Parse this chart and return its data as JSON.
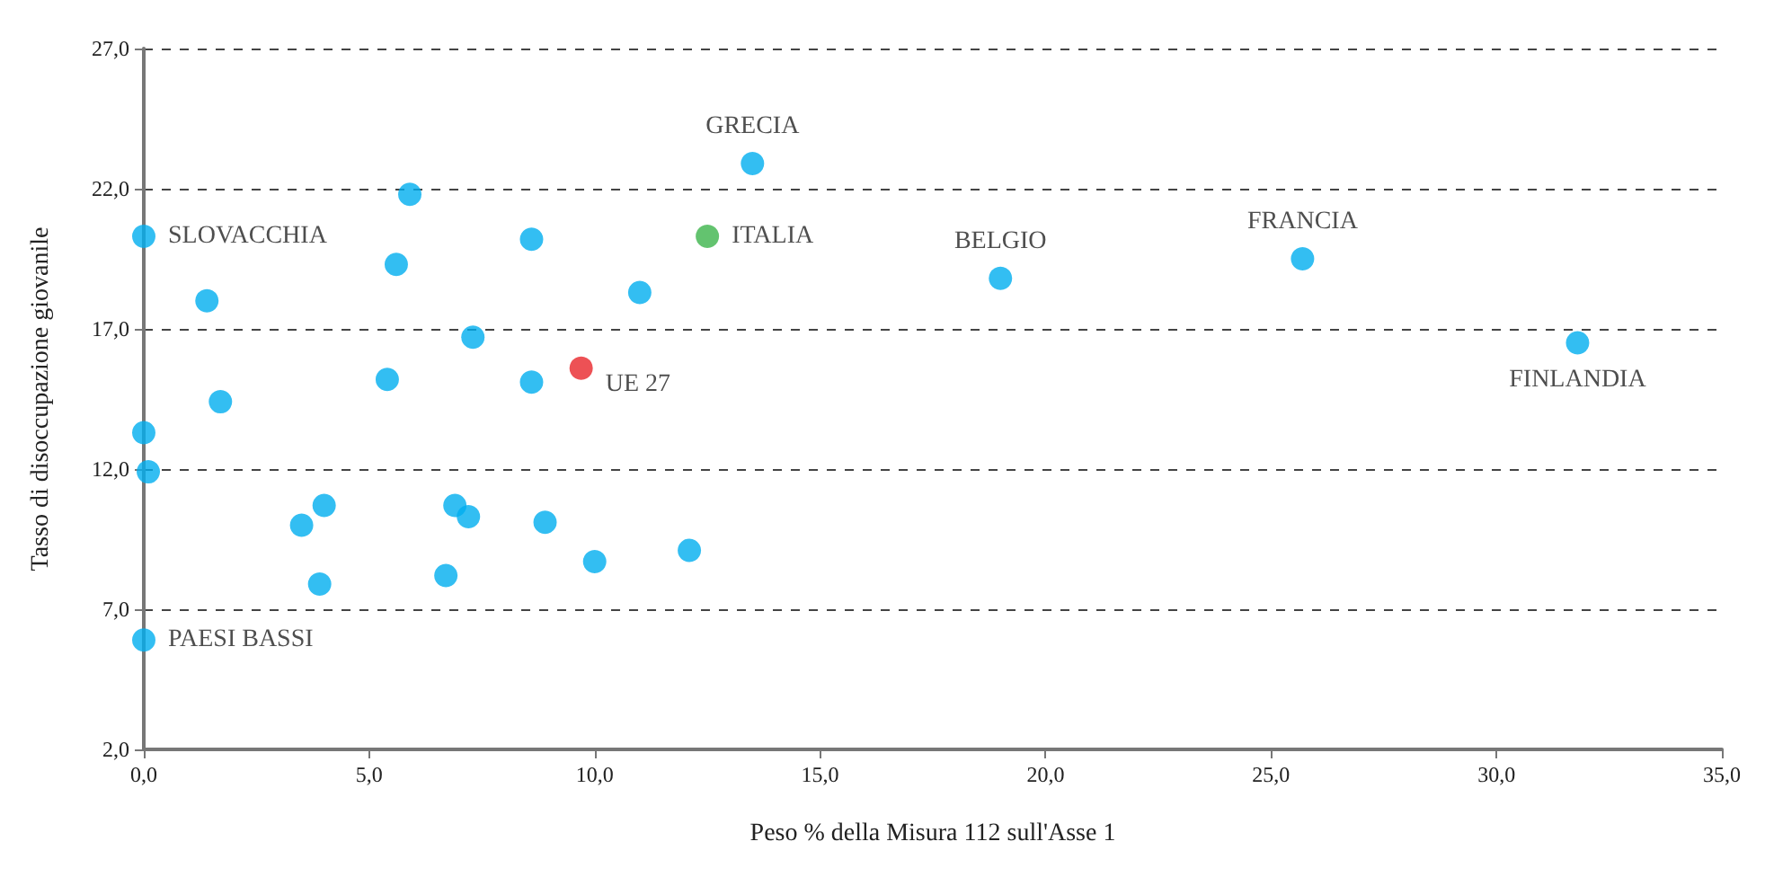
{
  "chart_data": {
    "type": "scatter",
    "xlabel": "Peso % della Misura 112 sull'Asse 1",
    "ylabel": "Tasso di disoccupazione giovanile",
    "xlim": [
      0,
      35
    ],
    "ylim": [
      2,
      27
    ],
    "xticks": [
      {
        "value": 0,
        "label": "0,0"
      },
      {
        "value": 5,
        "label": "5,0"
      },
      {
        "value": 10,
        "label": "10,0"
      },
      {
        "value": 15,
        "label": "15,0"
      },
      {
        "value": 20,
        "label": "20,0"
      },
      {
        "value": 25,
        "label": "25,0"
      },
      {
        "value": 30,
        "label": "30,0"
      },
      {
        "value": 35,
        "label": "35,0"
      }
    ],
    "yticks": [
      {
        "value": 2,
        "label": "2,0"
      },
      {
        "value": 7,
        "label": "7,0"
      },
      {
        "value": 12,
        "label": "12,0"
      },
      {
        "value": 17,
        "label": "17,0"
      },
      {
        "value": 22,
        "label": "22,0"
      },
      {
        "value": 27,
        "label": "27,0"
      }
    ],
    "grid": "y",
    "marker": "circle",
    "series": [
      {
        "color": "#00aeef",
        "x": [
          0.0,
          5.9,
          8.6,
          5.6,
          1.4,
          11.0,
          7.3,
          5.4,
          8.6,
          1.7,
          0.0,
          0.1,
          3.5,
          4.0,
          6.9,
          7.2,
          8.9,
          10.0,
          12.1,
          3.9,
          6.7,
          0.0,
          13.5,
          19.0,
          25.7,
          31.8
        ],
        "values": [
          20.3,
          21.8,
          20.2,
          19.3,
          18.0,
          18.3,
          16.7,
          15.2,
          15.1,
          14.4,
          13.3,
          11.9,
          10.0,
          10.7,
          10.7,
          10.3,
          10.1,
          8.7,
          9.1,
          7.9,
          8.2,
          5.9,
          22.9,
          18.8,
          19.5,
          16.5
        ],
        "value_labels": [
          "SLOVACCHIA",
          null,
          null,
          null,
          null,
          null,
          null,
          null,
          null,
          null,
          null,
          null,
          null,
          null,
          null,
          null,
          null,
          null,
          null,
          null,
          null,
          "PAESI BASSI",
          "GRECIA",
          "BELGIO",
          "FRANCIA",
          "FINLANDIA"
        ]
      },
      {
        "color": "#e8262a",
        "x": [
          9.7
        ],
        "values": [
          15.6
        ],
        "value_labels": [
          "UE 27"
        ]
      },
      {
        "color": "#3cb44b",
        "x": [
          12.5
        ],
        "values": [
          20.3
        ],
        "value_labels": [
          "ITALIA"
        ]
      }
    ]
  }
}
